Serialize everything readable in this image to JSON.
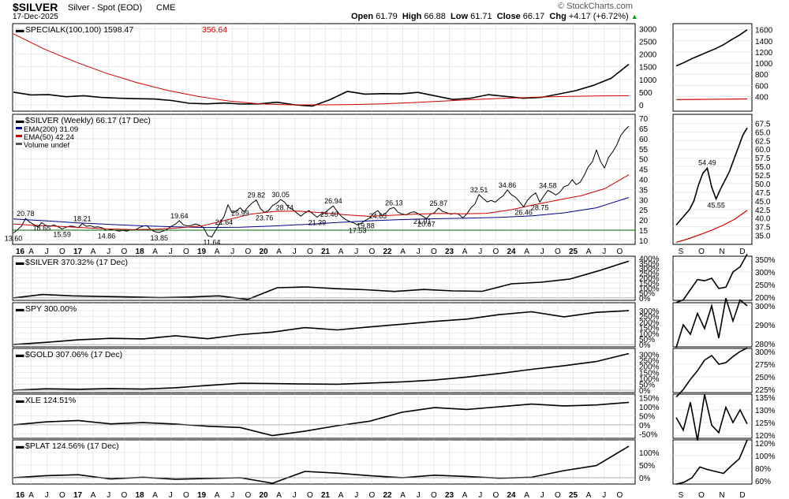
{
  "header": {
    "symbol": "$SILVER",
    "description": "Silver - Spot (EOD)",
    "exchange": "CME",
    "date": "17-Dec-2025",
    "brand": "© StockCharts.com",
    "quote": {
      "open_label": "Open",
      "open": "61.79",
      "high_label": "High",
      "high": "66.88",
      "low_label": "Low",
      "low": "61.71",
      "close_label": "Close",
      "close": "66.17",
      "chg_label": "Chg",
      "chg": "+4.17 (+6.72%)",
      "chg_arrow": "▲"
    }
  },
  "colors": {
    "price": "#000000",
    "ema200": "#00008b",
    "ema50": "#cc0000",
    "support": "#006400",
    "grid": "#dcdcdc",
    "border": "#000000",
    "up_arrow": "#00a000"
  },
  "x_axis": {
    "labels": [
      "16",
      "A",
      "J",
      "O",
      "17",
      "A",
      "J",
      "O",
      "18",
      "A",
      "J",
      "O",
      "19",
      "A",
      "J",
      "O",
      "20",
      "A",
      "J",
      "O",
      "21",
      "A",
      "J",
      "O",
      "22",
      "A",
      "J",
      "O",
      "23",
      "A",
      "J",
      "O",
      "24",
      "A",
      "J",
      "O",
      "25",
      "A",
      "J",
      "O"
    ],
    "major": [
      "16",
      "17",
      "18",
      "19",
      "20",
      "21",
      "22",
      "23",
      "24",
      "25"
    ]
  },
  "side_x_axis": {
    "labels": [
      "S",
      "O",
      "N",
      "D"
    ]
  },
  "chart_data": [
    {
      "type": "line",
      "panel": "specialk",
      "title": "SPECIALK(100,100)",
      "value": "1598.47",
      "signal_value": "356.64",
      "ylim": [
        -250,
        3200
      ],
      "yticks": [
        0,
        500,
        1000,
        1500,
        2000,
        2500,
        3000
      ],
      "series": [
        {
          "name": "SPECIALK",
          "color": "#000000",
          "values": [
            500,
            390,
            400,
            320,
            360,
            290,
            260,
            240,
            230,
            170,
            60,
            40,
            70,
            30,
            40,
            100,
            0,
            -50,
            200,
            530,
            420,
            440,
            430,
            490,
            350,
            210,
            260,
            400,
            330,
            260,
            290,
            420,
            560,
            770,
            1050,
            1598
          ]
        },
        {
          "name": "Signal",
          "color": "#cc0000",
          "values": [
            2800,
            2200,
            1700,
            1250,
            880,
            570,
            330,
            150,
            40,
            0,
            0,
            10,
            40,
            90,
            150,
            210,
            260,
            300,
            330,
            350,
            357
          ]
        }
      ]
    },
    {
      "type": "line",
      "panel": "price",
      "title": "$SILVER (Weekly)",
      "last": "66.17",
      "last_date": "(17 Dec)",
      "legend": [
        {
          "label": "EMA(200)",
          "value": "31.09",
          "color": "#00008b"
        },
        {
          "label": "EMA(50)",
          "value": "42.24",
          "color": "#cc0000"
        },
        {
          "label": "Volume undef",
          "value": "",
          "color": "#555555"
        }
      ],
      "ylim": [
        8,
        72
      ],
      "yticks": [
        10,
        15,
        20,
        25,
        30,
        35,
        40,
        45,
        50,
        55,
        60,
        65,
        70
      ],
      "support_level": 15,
      "series": [
        {
          "name": "$SILVER",
          "color": "#000000",
          "values": [
            13.6,
            15.2,
            17.0,
            20.78,
            19.0,
            17.8,
            16.5,
            18.65,
            17.3,
            16.9,
            17.6,
            16.7,
            15.59,
            16.4,
            17.0,
            16.8,
            16.2,
            18.21,
            16.9,
            17.2,
            16.5,
            16.6,
            16.1,
            14.86,
            15.3,
            15.0,
            14.5,
            14.9,
            14.5,
            15.1,
            15.0,
            16.2,
            17.0,
            17.2,
            15.1,
            14.2,
            13.85,
            14.6,
            15.4,
            16.9,
            18.0,
            19.64,
            17.6,
            17.1,
            17.3,
            18.1,
            17.4,
            16.1,
            12.3,
            11.64,
            15.1,
            18.5,
            21.64,
            27.5,
            23.6,
            24.4,
            25.99,
            24.0,
            26.5,
            28.4,
            29.82,
            25.6,
            23.76,
            24.6,
            27.1,
            28.3,
            30.05,
            28.74,
            26.2,
            25.1,
            23.4,
            21.9,
            23.5,
            24.6,
            23.0,
            21.39,
            22.8,
            23.7,
            25.4,
            26.94,
            24.1,
            21.8,
            20.3,
            19.3,
            18.6,
            17.53,
            18.5,
            19.88,
            21.0,
            23.3,
            24.63,
            22.1,
            23.4,
            25.6,
            26.13,
            23.8,
            23.0,
            22.5,
            23.6,
            24.1,
            23.0,
            21.91,
            20.67,
            22.8,
            23.6,
            25.87,
            24.2,
            23.6,
            22.8,
            23.2,
            22.8,
            21.0,
            23.0,
            26.0,
            27.9,
            32.51,
            30.6,
            28.9,
            29.6,
            28.8,
            30.5,
            32.0,
            34.86,
            32.4,
            31.2,
            29.0,
            26.46,
            29.8,
            31.9,
            33.3,
            28.75,
            31.8,
            34.58,
            33.6,
            32.3,
            33.8,
            36.4,
            37.1,
            39.8,
            37.4,
            38.6,
            42.1,
            46.3,
            48.6,
            54.49,
            48.8,
            45.55,
            50.8,
            53.5,
            56.8,
            61.5,
            64.2,
            66.17
          ]
        },
        {
          "name": "EMA(200)",
          "color": "#00008b",
          "values": [
            20.5,
            19.6,
            18.6,
            17.8,
            17.1,
            16.6,
            16.3,
            16.4,
            17.0,
            17.8,
            18.8,
            19.6,
            20.2,
            20.6,
            20.9,
            21.3,
            22.0,
            23.5,
            26.0,
            31.09
          ]
        },
        {
          "name": "EMA(50)",
          "color": "#cc0000",
          "values": [
            18.0,
            17.3,
            16.8,
            16.2,
            15.6,
            15.3,
            15.4,
            16.1,
            17.2,
            20.0,
            22.8,
            24.2,
            24.4,
            23.6,
            22.6,
            21.8,
            22.3,
            22.9,
            23.2,
            23.0,
            23.3,
            25.0,
            27.5,
            29.8,
            32.0,
            35.5,
            42.24
          ]
        }
      ],
      "annotations": [
        "13.60",
        "20.78",
        "15.59",
        "18.65",
        "14.86",
        "18.21",
        "13.85",
        "19.64",
        "11.64",
        "21.64",
        "29.82",
        "25.99",
        "30.05",
        "23.76",
        "28.74",
        "25.40",
        "21.39",
        "26.94",
        "17.53",
        "24.63",
        "19.88",
        "26.13",
        "20.67",
        "21.91",
        "25.87",
        "32.51",
        "34.86",
        "26.46",
        "34.58",
        "28.75"
      ]
    },
    {
      "type": "line",
      "panel": "perf_silver",
      "title": "$SILVER",
      "value": "370.32%",
      "date": "(17 Dec)",
      "ylim": [
        -25,
        420
      ],
      "yticks": [
        "0%",
        "50%",
        "100%",
        "150%",
        "200%",
        "250%",
        "300%",
        "350%",
        "400%"
      ],
      "series": [
        {
          "name": "$SILVER",
          "values": [
            0,
            34,
            20,
            14,
            9,
            2,
            8,
            20,
            -15,
            102,
            110,
            93,
            82,
            65,
            85,
            70,
            66,
            142,
            158,
            190,
            275,
            370
          ]
        }
      ]
    },
    {
      "type": "line",
      "panel": "perf_spy",
      "title": "SPY",
      "value": "300.00%",
      "date": "",
      "ylim": [
        -20,
        370
      ],
      "yticks": [
        "0%",
        "50%",
        "100%",
        "150%",
        "200%",
        "250%",
        "300%"
      ],
      "series": [
        {
          "name": "SPY",
          "values": [
            0,
            20,
            42,
            55,
            50,
            78,
            52,
            88,
            110,
            150,
            130,
            156,
            180,
            205,
            225,
            265,
            290,
            245,
            285,
            300
          ]
        }
      ]
    },
    {
      "type": "line",
      "panel": "perf_gold",
      "title": "$GOLD",
      "value": "307.06%",
      "date": "(17 Dec)",
      "ylim": [
        -20,
        350
      ],
      "yticks": [
        "0%",
        "50%",
        "100%",
        "150%",
        "200%",
        "250%",
        "300%"
      ],
      "series": [
        {
          "name": "$GOLD",
          "values": [
            0,
            12,
            8,
            14,
            10,
            20,
            40,
            58,
            55,
            52,
            50,
            60,
            70,
            85,
            110,
            140,
            175,
            205,
            240,
            307
          ]
        }
      ]
    },
    {
      "type": "line",
      "panel": "perf_xle",
      "title": "XLE",
      "value": "124.51%",
      "date": "",
      "ylim": [
        -75,
        170
      ],
      "yticks": [
        "-50%",
        "0%",
        "50%",
        "100%",
        "150%"
      ],
      "series": [
        {
          "name": "XLE",
          "values": [
            0,
            16,
            24,
            5,
            12,
            4,
            -8,
            -15,
            -60,
            -35,
            -5,
            20,
            70,
            95,
            85,
            100,
            115,
            105,
            110,
            124.51
          ]
        }
      ]
    },
    {
      "type": "line",
      "panel": "perf_plat",
      "title": "$PLAT",
      "value": "124.56%",
      "date": "(17 Dec)",
      "ylim": [
        -25,
        150
      ],
      "yticks": [
        "0%",
        "50%",
        "100%"
      ],
      "series": [
        {
          "name": "$PLAT",
          "values": [
            0,
            8,
            12,
            -5,
            2,
            -6,
            -3,
            0,
            -22,
            25,
            18,
            8,
            0,
            10,
            5,
            -2,
            2,
            28,
            48,
            124.56
          ]
        }
      ]
    }
  ],
  "side_panels": [
    {
      "panel": "specialk",
      "yticks": [
        "400",
        "600",
        "800",
        "1000",
        "1200",
        "1400",
        "1600"
      ],
      "values": [
        950,
        1010,
        1080,
        1140,
        1200,
        1260,
        1330,
        1420,
        1500,
        1598
      ],
      "signal": [
        345,
        348,
        352,
        356
      ]
    },
    {
      "panel": "price",
      "yticks": [
        "35.0",
        "37.5",
        "40.0",
        "42.5",
        "45.0",
        "47.5",
        "50.0",
        "52.5",
        "55.0",
        "57.5",
        "60.0",
        "62.5",
        "65.0",
        "67.5"
      ],
      "values": [
        38.0,
        39.5,
        41.0,
        42.5,
        45.0,
        49.5,
        53.0,
        54.49,
        49.0,
        45.55,
        48.5,
        51.0,
        53.5,
        57.0,
        60.5,
        64.0,
        66.17
      ],
      "ema50": [
        33.0,
        34.0,
        35.2,
        36.5,
        38.0,
        39.8,
        42.24
      ],
      "labels": [
        "54.49",
        "45.55"
      ]
    },
    {
      "panel": "perf_silver",
      "yticks": [
        "200%",
        "250%",
        "300%",
        "350%"
      ],
      "values": [
        180,
        190,
        230,
        270,
        265,
        275,
        235,
        240,
        300,
        320,
        370
      ]
    },
    {
      "panel": "perf_spy",
      "yticks": [
        "280%",
        "290%",
        "300%"
      ],
      "values": [
        278,
        290,
        285,
        296,
        288,
        300,
        283,
        304,
        292,
        303,
        300
      ]
    },
    {
      "panel": "perf_gold",
      "yticks": [
        "225%",
        "250%",
        "275%",
        "300%"
      ],
      "values": [
        210,
        225,
        245,
        262,
        283,
        292,
        275,
        278,
        290,
        300,
        307
      ]
    },
    {
      "panel": "perf_xle",
      "yticks": [
        "120%",
        "125%",
        "130%",
        "135%"
      ],
      "values": [
        127,
        122,
        133,
        118,
        136,
        124,
        121,
        131,
        125,
        130,
        124.5
      ]
    },
    {
      "panel": "perf_plat",
      "yticks": [
        "60%",
        "80%",
        "100%",
        "120%"
      ],
      "values": [
        55,
        58,
        65,
        82,
        78,
        75,
        72,
        84,
        95,
        124.5
      ]
    }
  ]
}
